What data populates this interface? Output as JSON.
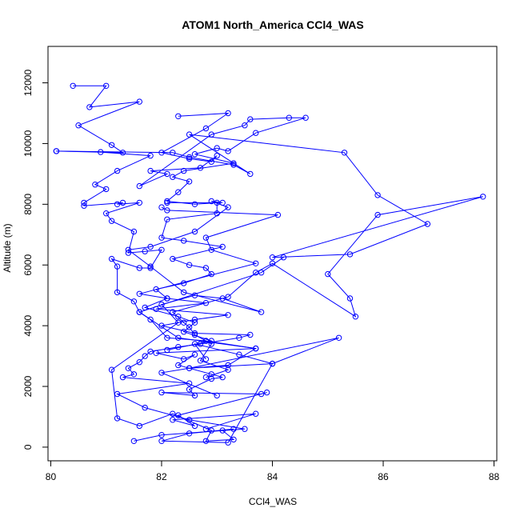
{
  "chart_data": {
    "type": "line",
    "title": "ATOM1 North_America CCl4_WAS",
    "xlabel": "CCl4_WAS",
    "ylabel": "Altitude (m)",
    "xlim": [
      79.95,
      88.05
    ],
    "ylim": [
      -450,
      13200
    ],
    "xticks": [
      80,
      82,
      84,
      86,
      88
    ],
    "yticks": [
      0,
      2000,
      4000,
      6000,
      8000,
      10000,
      12000
    ],
    "grid": false,
    "legend": "none",
    "markers": "open-circle",
    "color": "#0000ff",
    "series": [
      {
        "x": [
          80.4,
          81.0,
          80.7,
          81.6,
          80.5,
          81.1,
          81.3,
          80.1,
          80.9,
          81.8,
          81.2,
          80.8,
          81.0,
          80.6,
          80.6,
          81.3,
          81.2,
          81.6,
          81.0,
          81.1,
          81.5,
          81.4,
          81.7,
          82.0,
          81.8,
          81.6,
          81.1,
          81.2,
          81.2,
          81.5,
          81.6,
          81.8,
          82.1,
          82.8,
          83.7,
          81.9,
          82.4,
          82.6,
          82.3,
          82.9,
          83.1,
          82.9,
          82.5,
          82.6,
          82.0,
          83.8,
          83.9,
          82.3,
          82.6,
          82.2,
          83.7,
          82.8
        ],
        "y": [
          11900,
          11900,
          11200,
          11380,
          10600,
          9950,
          9700,
          9750,
          9720,
          9600,
          9100,
          8650,
          8500,
          8050,
          7950,
          8050,
          8000,
          8050,
          7700,
          7450,
          7100,
          6400,
          6450,
          6500,
          5900,
          5900,
          6200,
          5950,
          5100,
          4800,
          4450,
          4200,
          3600,
          3500,
          3250,
          3100,
          2900,
          3050,
          2700,
          2400,
          2300,
          2250,
          1900,
          1700,
          1800,
          1750,
          1800,
          1050,
          700,
          900,
          1100,
          600
        ]
      },
      {
        "x": [
          82.3,
          83.2,
          82.8,
          82.0,
          82.5,
          82.9,
          83.0,
          82.7,
          81.8,
          82.1,
          81.6,
          82.9,
          83.5,
          83.6,
          84.3,
          84.6,
          83.7,
          83.2,
          83.0,
          82.6,
          83.3,
          82.4,
          82.2,
          82.5,
          82.3,
          82.1,
          82.6,
          83.0,
          83.0,
          82.1,
          82.0,
          82.4,
          83.1,
          82.2,
          82.5,
          82.8,
          82.9,
          82.4,
          81.9,
          82.1,
          81.7,
          82.3,
          82.6,
          82.4,
          82.9,
          82.1
        ],
        "y": [
          10900,
          11000,
          10500,
          9700,
          9500,
          9400,
          9600,
          9200,
          9100,
          9000,
          8600,
          10300,
          10600,
          10800,
          10850,
          10850,
          10350,
          9750,
          9850,
          9650,
          9350,
          9100,
          8900,
          8750,
          8400,
          8100,
          8000,
          8050,
          7700,
          7500,
          6900,
          6800,
          6600,
          6200,
          6000,
          5900,
          5700,
          5400,
          5200,
          4900,
          4600,
          4300,
          4100,
          3800,
          3500,
          3200
        ]
      },
      {
        "x": [
          80.1,
          82.2,
          82.5,
          83.3,
          83.6,
          82.5,
          85.3,
          85.9,
          86.8,
          85.4,
          84.0,
          87.8,
          85.9,
          85.0,
          85.4,
          85.5,
          84.0,
          83.7,
          83.2,
          82.2,
          82.4,
          82.5,
          82.6,
          82.8,
          82.9,
          82.7,
          83.2,
          82.8
        ],
        "y": [
          9750,
          9700,
          9550,
          9300,
          9000,
          10300,
          9700,
          8300,
          7350,
          6350,
          6250,
          8250,
          7650,
          5700,
          4900,
          4300,
          6050,
          5750,
          4950,
          4450,
          4100,
          3950,
          3700,
          3500,
          3400,
          2850,
          2550,
          2300
        ]
      },
      {
        "x": [
          82.1,
          83.1,
          82.9,
          83.2,
          82.6,
          81.8,
          81.4,
          81.8,
          82.4,
          83.8,
          83.1,
          82.6,
          82.0,
          82.3,
          81.1,
          81.2,
          81.6,
          82.2,
          82.9,
          82.8,
          83.3,
          83.1,
          83.3,
          82.5,
          82.0,
          83.2,
          84.0,
          83.4,
          82.6,
          82.8
        ],
        "y": [
          8050,
          8050,
          8100,
          7900,
          7100,
          6600,
          6500,
          5950,
          5100,
          4450,
          4900,
          5000,
          4700,
          4100,
          2550,
          950,
          700,
          1100,
          550,
          200,
          250,
          550,
          600,
          450,
          200,
          150,
          2750,
          3050,
          3400,
          2900
        ]
      },
      {
        "x": [
          82.0,
          82.1,
          84.1,
          82.8,
          82.9,
          83.7,
          81.6,
          82.1,
          82.8,
          81.9,
          83.2,
          82.6,
          82.0,
          82.6,
          83.6,
          83.4,
          82.7,
          82.3,
          81.8,
          81.7,
          81.6,
          81.4,
          81.5,
          81.3,
          82.5,
          81.2,
          81.7,
          82.5,
          83.5,
          82.0,
          81.5
        ],
        "y": [
          7900,
          7800,
          7650,
          6900,
          6500,
          6050,
          5050,
          4900,
          4750,
          4550,
          4350,
          4200,
          4000,
          3750,
          3700,
          3600,
          3400,
          3300,
          3150,
          3000,
          2800,
          2600,
          2400,
          2300,
          2100,
          1750,
          1300,
          900,
          600,
          400,
          200
        ]
      },
      {
        "x": [
          84.2,
          83.8,
          81.6,
          82.3,
          83.7,
          83.2,
          82.5,
          84.0,
          85.2,
          82.5,
          82.0,
          83.0
        ],
        "y": [
          6250,
          5750,
          4450,
          3600,
          3250,
          2700,
          2600,
          2750,
          3600,
          2600,
          2450,
          1700
        ]
      }
    ]
  }
}
